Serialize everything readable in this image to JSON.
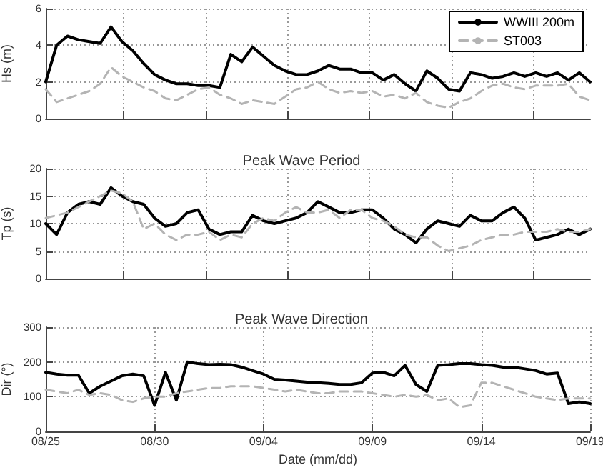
{
  "chart_data": [
    {
      "type": "line",
      "ylabel": "Hs (m)",
      "ylim": [
        0,
        6
      ],
      "yticks": [
        0,
        2,
        4,
        6
      ],
      "xlim": [
        "--08-25",
        "--09-19"
      ],
      "xticks": [
        {
          "value": "--08-28T13:00",
          "label": null
        },
        {
          "value": "--09-01T08:00",
          "label": null
        },
        {
          "value": "--09-05T03:00",
          "label": null
        },
        {
          "value": "--09-08T21:00",
          "label": null
        },
        {
          "value": "--09-12T15:00",
          "label": null
        },
        {
          "value": "--09-16T09:00",
          "label": null
        }
      ],
      "tick_labels": "y",
      "grid": true,
      "legend": "top right",
      "marker": "none",
      "x": [
        "--08-25T00:00",
        "--08-25T12:00",
        "--08-26T00:00",
        "--08-26T12:00",
        "--08-27T00:00",
        "--08-27T12:00",
        "--08-28T00:00",
        "--08-28T12:00",
        "--08-29T00:00",
        "--08-29T12:00",
        "--08-30T00:00",
        "--08-30T12:00",
        "--08-31T00:00",
        "--08-31T12:00",
        "--09-01T00:00",
        "--09-01T12:00",
        "--09-02T00:00",
        "--09-02T12:00",
        "--09-03T00:00",
        "--09-03T12:00",
        "--09-04T00:00",
        "--09-04T12:00",
        "--09-05T00:00",
        "--09-05T12:00",
        "--09-06T00:00",
        "--09-06T12:00",
        "--09-07T00:00",
        "--09-07T12:00",
        "--09-08T00:00",
        "--09-08T12:00",
        "--09-09T00:00",
        "--09-09T12:00",
        "--09-10T00:00",
        "--09-10T12:00",
        "--09-11T00:00",
        "--09-11T12:00",
        "--09-12T00:00",
        "--09-12T12:00",
        "--09-13T00:00",
        "--09-13T12:00",
        "--09-14T00:00",
        "--09-14T12:00",
        "--09-15T00:00",
        "--09-15T12:00",
        "--09-16T00:00",
        "--09-16T12:00",
        "--09-17T00:00",
        "--09-17T12:00",
        "--09-18T00:00",
        "--09-18T12:00",
        "--09-19T00:00"
      ],
      "series": [
        {
          "name": "WWIII 200m",
          "color": "#000000",
          "line_style": "solid",
          "values": [
            2.0,
            4.0,
            4.5,
            4.3,
            4.2,
            4.1,
            5.0,
            4.2,
            3.7,
            3.0,
            2.4,
            2.1,
            1.9,
            1.9,
            1.8,
            1.8,
            1.7,
            3.5,
            3.1,
            3.9,
            3.4,
            2.9,
            2.6,
            2.4,
            2.4,
            2.6,
            2.9,
            2.7,
            2.7,
            2.5,
            2.5,
            2.1,
            2.4,
            1.9,
            1.5,
            2.6,
            2.2,
            1.6,
            1.5,
            2.5,
            2.4,
            2.2,
            2.3,
            2.5,
            2.3,
            2.5,
            2.3,
            2.5,
            2.1,
            2.5,
            2.0
          ]
        },
        {
          "name": "ST003",
          "color": "#b4b4b4",
          "line_style": "dashed",
          "values": [
            1.6,
            0.9,
            1.1,
            1.3,
            1.5,
            1.9,
            2.8,
            2.3,
            2.0,
            1.7,
            1.5,
            1.1,
            1.0,
            1.3,
            1.6,
            1.7,
            1.3,
            1.1,
            0.8,
            1.0,
            0.9,
            0.8,
            1.2,
            1.6,
            1.7,
            2.0,
            1.6,
            1.4,
            1.5,
            1.4,
            1.5,
            1.2,
            1.3,
            1.1,
            1.4,
            0.9,
            0.7,
            0.6,
            0.9,
            1.1,
            1.5,
            1.8,
            1.9,
            1.7,
            1.6,
            1.8,
            1.8,
            1.8,
            1.9,
            1.2,
            1.0
          ]
        }
      ]
    },
    {
      "type": "line",
      "title": "Peak Wave Period",
      "ylabel": "Tp (s)",
      "ylim": [
        0,
        20
      ],
      "yticks": [
        0,
        5,
        10,
        15,
        20
      ],
      "xlim": [
        "--08-25",
        "--09-19"
      ],
      "xticks": [
        {
          "value": "--08-28T13:00",
          "label": null
        },
        {
          "value": "--09-01T08:00",
          "label": null
        },
        {
          "value": "--09-05T03:00",
          "label": null
        },
        {
          "value": "--09-08T21:00",
          "label": null
        },
        {
          "value": "--09-12T15:00",
          "label": null
        },
        {
          "value": "--09-16T09:00",
          "label": null
        }
      ],
      "tick_labels": "y",
      "grid": true,
      "marker": "none",
      "x": [
        "--08-25T00:00",
        "--08-25T12:00",
        "--08-26T00:00",
        "--08-26T12:00",
        "--08-27T00:00",
        "--08-27T12:00",
        "--08-28T00:00",
        "--08-28T12:00",
        "--08-29T00:00",
        "--08-29T12:00",
        "--08-30T00:00",
        "--08-30T12:00",
        "--08-31T00:00",
        "--08-31T12:00",
        "--09-01T00:00",
        "--09-01T12:00",
        "--09-02T00:00",
        "--09-02T12:00",
        "--09-03T00:00",
        "--09-03T12:00",
        "--09-04T00:00",
        "--09-04T12:00",
        "--09-05T00:00",
        "--09-05T12:00",
        "--09-06T00:00",
        "--09-06T12:00",
        "--09-07T00:00",
        "--09-07T12:00",
        "--09-08T00:00",
        "--09-08T12:00",
        "--09-09T00:00",
        "--09-09T12:00",
        "--09-10T00:00",
        "--09-10T12:00",
        "--09-11T00:00",
        "--09-11T12:00",
        "--09-12T00:00",
        "--09-12T12:00",
        "--09-13T00:00",
        "--09-13T12:00",
        "--09-14T00:00",
        "--09-14T12:00",
        "--09-15T00:00",
        "--09-15T12:00",
        "--09-16T00:00",
        "--09-16T12:00",
        "--09-17T00:00",
        "--09-17T12:00",
        "--09-18T00:00",
        "--09-18T12:00",
        "--09-19T00:00"
      ],
      "series": [
        {
          "color": "#000000",
          "line_style": "solid",
          "values": [
            10,
            8,
            12,
            13.5,
            14,
            13.5,
            16.5,
            15,
            14,
            13.5,
            11,
            9.5,
            10,
            12,
            12.5,
            9,
            8,
            8.5,
            8.5,
            11.5,
            10.5,
            10,
            10.5,
            11,
            12,
            14,
            13,
            12,
            12,
            12.5,
            12.5,
            11,
            9,
            8,
            6.5,
            9,
            10.5,
            10,
            9.5,
            11.5,
            10.5,
            10.5,
            12,
            13,
            11,
            7,
            7.5,
            8,
            9,
            8,
            9
          ]
        },
        {
          "color": "#b4b4b4",
          "line_style": "dashed",
          "values": [
            11,
            11.5,
            12,
            13,
            14,
            15,
            16,
            15.5,
            14,
            9,
            10,
            8,
            7,
            8,
            8,
            8.5,
            7,
            8,
            7.5,
            10,
            11,
            10.5,
            12,
            13,
            12,
            12,
            12.5,
            11,
            12.5,
            12.5,
            11,
            10.5,
            9.5,
            8,
            7.5,
            7.5,
            6,
            5,
            5.5,
            6,
            7,
            7.5,
            8,
            8,
            8.5,
            8.5,
            8.5,
            9,
            8.5,
            8.5,
            9
          ]
        }
      ]
    },
    {
      "type": "line",
      "title": "Peak Wave Direction",
      "xlabel": "Date (mm/dd)",
      "ylabel": "Dir (°)",
      "ylim": [
        0,
        300
      ],
      "yticks": [
        0,
        100,
        200,
        300
      ],
      "xlim": [
        "--08-25",
        "--09-19"
      ],
      "xticks": [
        {
          "value": "--08-25",
          "label": "08/25"
        },
        {
          "value": "--08-30",
          "label": "08/30"
        },
        {
          "value": "--09-04",
          "label": "09/04"
        },
        {
          "value": "--09-09",
          "label": "09/09"
        },
        {
          "value": "--09-14",
          "label": "09/14"
        },
        {
          "value": "--09-19",
          "label": "09/19"
        }
      ],
      "grid": true,
      "marker": "none",
      "x": [
        "--08-25T00:00",
        "--08-25T12:00",
        "--08-26T00:00",
        "--08-26T12:00",
        "--08-27T00:00",
        "--08-27T12:00",
        "--08-28T00:00",
        "--08-28T12:00",
        "--08-29T00:00",
        "--08-29T12:00",
        "--08-30T00:00",
        "--08-30T12:00",
        "--08-31T00:00",
        "--08-31T12:00",
        "--09-01T00:00",
        "--09-01T12:00",
        "--09-02T00:00",
        "--09-02T12:00",
        "--09-03T00:00",
        "--09-03T12:00",
        "--09-04T00:00",
        "--09-04T12:00",
        "--09-05T00:00",
        "--09-05T12:00",
        "--09-06T00:00",
        "--09-06T12:00",
        "--09-07T00:00",
        "--09-07T12:00",
        "--09-08T00:00",
        "--09-08T12:00",
        "--09-09T00:00",
        "--09-09T12:00",
        "--09-10T00:00",
        "--09-10T12:00",
        "--09-11T00:00",
        "--09-11T12:00",
        "--09-12T00:00",
        "--09-12T12:00",
        "--09-13T00:00",
        "--09-13T12:00",
        "--09-14T00:00",
        "--09-14T12:00",
        "--09-15T00:00",
        "--09-15T12:00",
        "--09-16T00:00",
        "--09-16T12:00",
        "--09-17T00:00",
        "--09-17T12:00",
        "--09-18T00:00",
        "--09-18T12:00",
        "--09-19T00:00"
      ],
      "series": [
        {
          "color": "#000000",
          "line_style": "solid",
          "values": [
            170,
            165,
            162,
            162,
            110,
            130,
            145,
            160,
            165,
            160,
            75,
            170,
            90,
            200,
            195,
            192,
            193,
            192,
            185,
            175,
            165,
            150,
            148,
            145,
            142,
            140,
            138,
            135,
            135,
            140,
            168,
            170,
            160,
            190,
            135,
            115,
            190,
            192,
            195,
            195,
            192,
            190,
            185,
            185,
            180,
            175,
            165,
            168,
            80,
            85,
            80
          ]
        },
        {
          "color": "#b4b4b4",
          "line_style": "dashed",
          "values": [
            120,
            115,
            110,
            120,
            105,
            110,
            105,
            90,
            85,
            95,
            100,
            100,
            110,
            115,
            120,
            125,
            125,
            130,
            130,
            130,
            125,
            120,
            115,
            120,
            115,
            110,
            110,
            115,
            115,
            115,
            110,
            105,
            100,
            105,
            100,
            105,
            90,
            95,
            70,
            75,
            140,
            140,
            130,
            120,
            110,
            100,
            95,
            90,
            95,
            95,
            95
          ]
        }
      ]
    }
  ]
}
